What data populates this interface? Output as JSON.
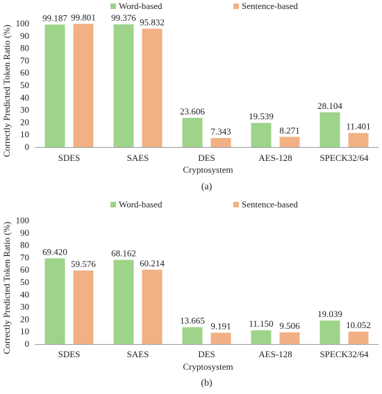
{
  "colors": {
    "word": "#9ed38a",
    "sentence": "#f2b085",
    "axis": "#999999",
    "text": "#222222"
  },
  "chart_data": [
    {
      "type": "bar",
      "panel_label": "(a)",
      "xlabel": "Cryptosystem",
      "ylabel": "Correctly Predicted Token Ratio (%)",
      "ylim": [
        0,
        100
      ],
      "yticks": [
        0,
        10,
        20,
        30,
        40,
        50,
        60,
        70,
        80,
        90,
        100
      ],
      "grid": false,
      "legend_position": "top",
      "categories": [
        "SDES",
        "SAES",
        "DES",
        "AES-128",
        "SPECK32/64"
      ],
      "series": [
        {
          "name": "Word-based",
          "values": [
            99.187,
            99.376,
            23.606,
            19.539,
            28.104
          ],
          "labels": [
            "99.187",
            "99.376",
            "23.606",
            "19.539",
            "28.104"
          ]
        },
        {
          "name": "Sentence-based",
          "values": [
            99.801,
            95.832,
            7.343,
            8.271,
            11.401
          ],
          "labels": [
            "99.801",
            "95.832",
            "7.343",
            "8.271",
            "11.401"
          ]
        }
      ]
    },
    {
      "type": "bar",
      "panel_label": "(b)",
      "xlabel": "Cryptosystem",
      "ylabel": "Correctly Predicted Token Ratio (%)",
      "ylim": [
        0,
        100
      ],
      "yticks": [
        0,
        10,
        20,
        30,
        40,
        50,
        60,
        70,
        80,
        90,
        100
      ],
      "grid": false,
      "legend_position": "top",
      "categories": [
        "SDES",
        "SAES",
        "DES",
        "AES-128",
        "SPECK32/64"
      ],
      "series": [
        {
          "name": "Word-based",
          "values": [
            69.42,
            68.162,
            13.665,
            11.15,
            19.039
          ],
          "labels": [
            "69.420",
            "68.162",
            "13.665",
            "11.150",
            "19.039"
          ]
        },
        {
          "name": "Sentence-based",
          "values": [
            59.576,
            60.214,
            9.191,
            9.506,
            10.052
          ],
          "labels": [
            "59.576",
            "60.214",
            "9.191",
            "9.506",
            "10.052"
          ]
        }
      ]
    }
  ]
}
